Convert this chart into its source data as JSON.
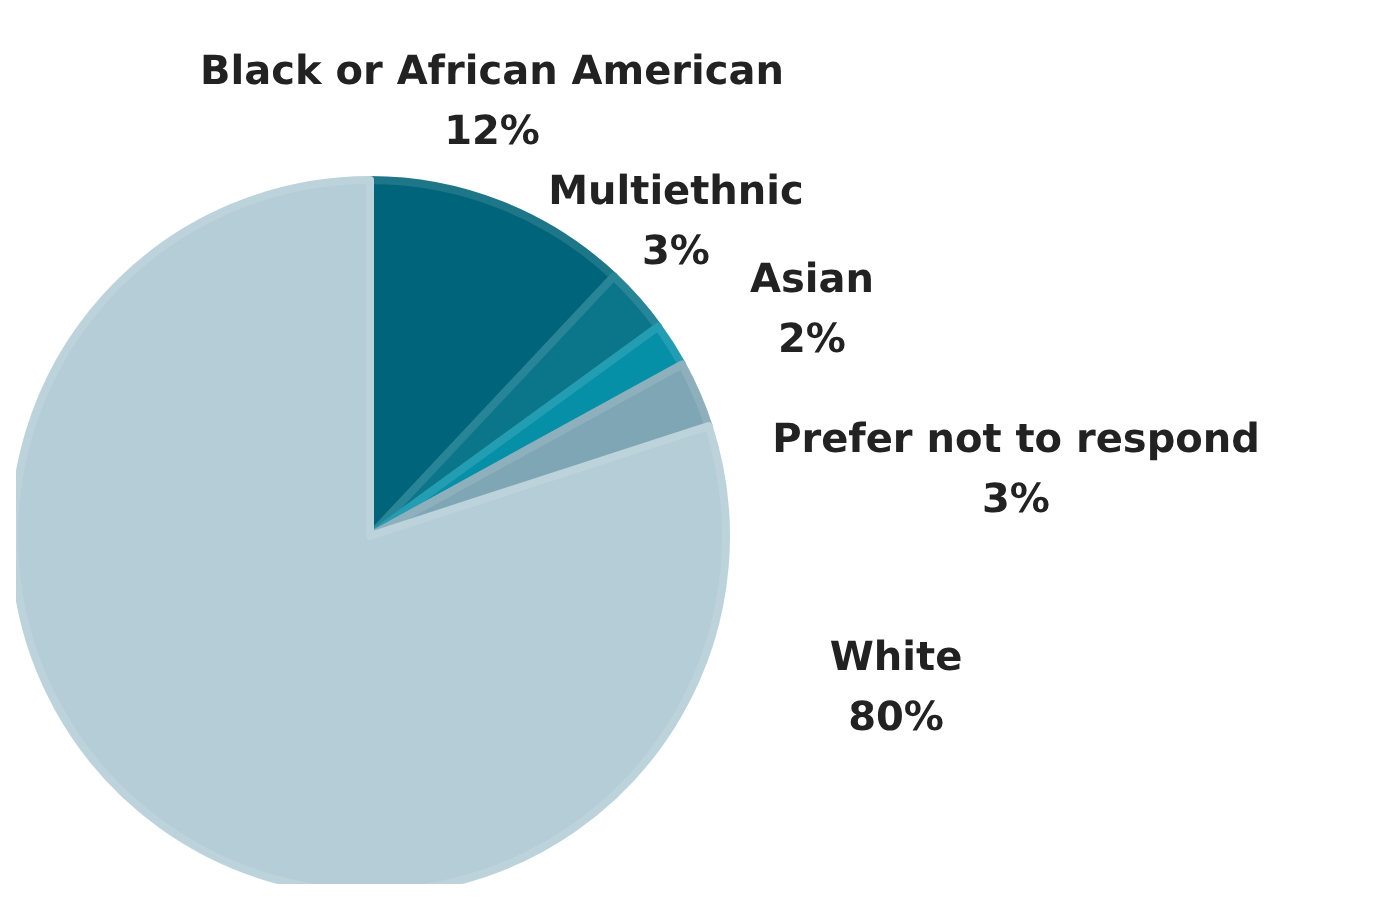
{
  "chart_data": {
    "type": "pie",
    "categories": [
      "Black or African American",
      "Multiethnic",
      "Asian",
      "Prefer not to respond",
      "White"
    ],
    "values": [
      12,
      3,
      2,
      3,
      80
    ],
    "colors": [
      "#00657a",
      "#0b7589",
      "#0590a8",
      "#7fa6b5",
      "#b4cdd7"
    ],
    "value_labels": [
      "12%",
      "3%",
      "2%",
      "3%",
      "80%"
    ],
    "legend": false
  }
}
